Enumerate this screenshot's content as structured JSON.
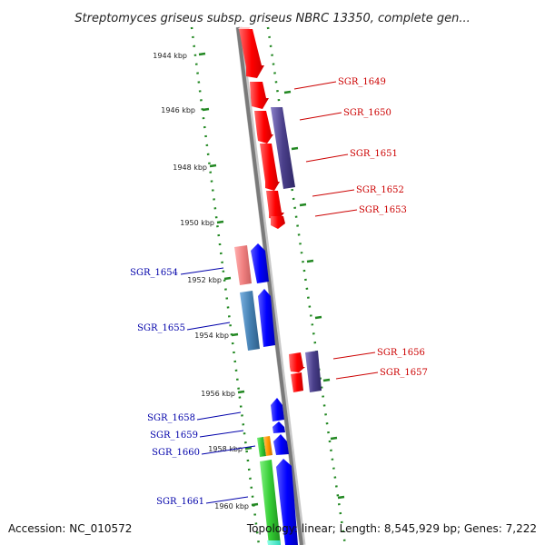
{
  "title": "Streptomyces griseus subsp. griseus NBRC 13350, complete gen...",
  "footer": {
    "accession": "Accession: NC_010572",
    "topology": "Topology: linear; Length: 8,545,929 bp; Genes: 7,222"
  },
  "scale": {
    "labels": [
      "1944 kbp",
      "1946 kbp",
      "1948 kbp",
      "1950 kbp",
      "1952 kbp",
      "1954 kbp",
      "1956 kbp",
      "1958 kbp",
      "1960 kbp"
    ]
  },
  "genes_forward": [
    "SGR_1649",
    "SGR_1650",
    "SGR_1651",
    "SGR_1652",
    "SGR_1653",
    "SGR_1656",
    "SGR_1657"
  ],
  "genes_reverse": [
    "SGR_1654",
    "SGR_1655",
    "SGR_1658",
    "SGR_1659",
    "SGR_1660",
    "SGR_1661"
  ],
  "colors": {
    "axis": "#888888",
    "guide": "#228822",
    "forward_gene": "#ff0000",
    "reverse_gene": "#0000ff",
    "forward_label": "#cc0000",
    "reverse_label": "#0000aa",
    "highlight_purple": "#4a3f8a"
  }
}
